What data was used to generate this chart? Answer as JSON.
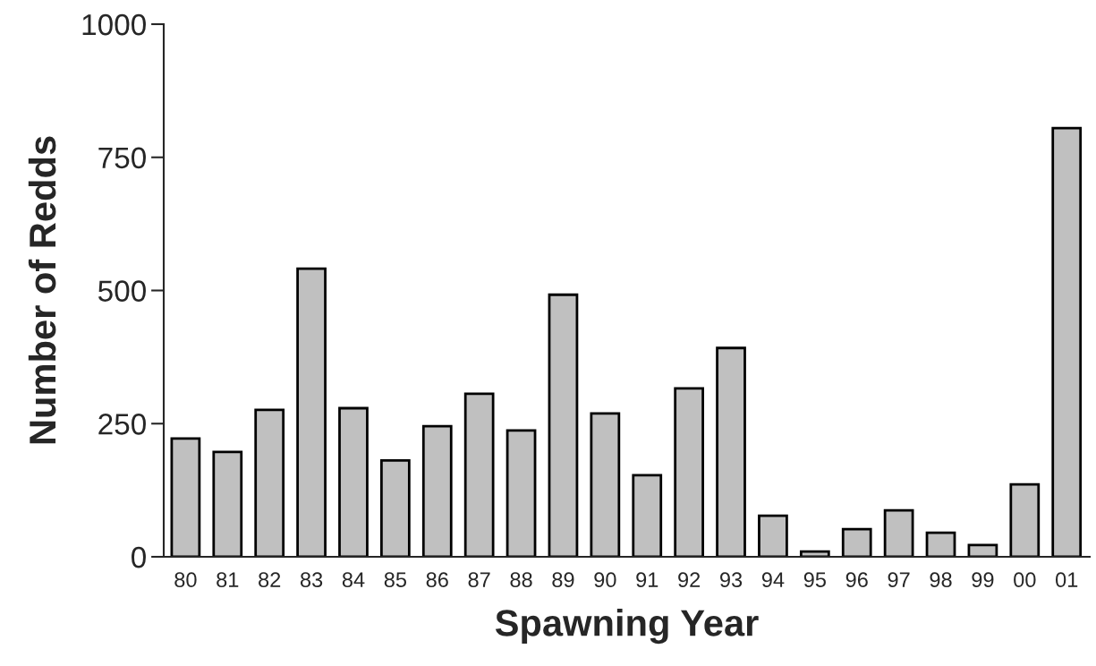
{
  "chart_data": {
    "type": "bar",
    "xlabel": "Spawning Year",
    "ylabel": "Number of Redds",
    "categories": [
      "80",
      "81",
      "82",
      "83",
      "84",
      "85",
      "86",
      "87",
      "88",
      "89",
      "90",
      "91",
      "92",
      "93",
      "94",
      "95",
      "96",
      "97",
      "98",
      "99",
      "00",
      "01"
    ],
    "values": [
      222,
      197,
      276,
      541,
      279,
      181,
      245,
      306,
      237,
      492,
      269,
      153,
      316,
      392,
      77,
      10,
      52,
      87,
      45,
      22,
      136,
      805
    ],
    "color": "#c0c0c0",
    "ylim": [
      0,
      1000
    ],
    "yticks": [
      0,
      250,
      500,
      750,
      1000
    ],
    "grid": false
  }
}
